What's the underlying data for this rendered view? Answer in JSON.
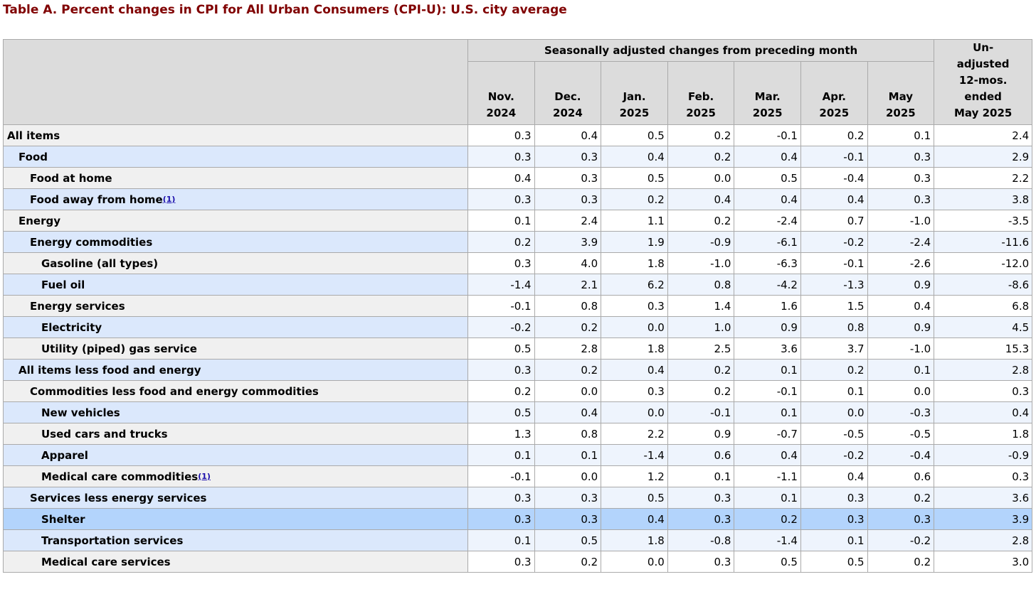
{
  "title": "Table A. Percent changes in CPI for All Urban Consumers (CPI-U): U.S. city average",
  "table": {
    "group_header": "Seasonally adjusted changes from preceding month",
    "columns": [
      "Nov.\n2024",
      "Dec.\n2024",
      "Jan.\n2025",
      "Feb.\n2025",
      "Mar.\n2025",
      "Apr.\n2025",
      "May\n2025",
      "Un-\nadjusted\n12-mos.\nended\nMay 2025"
    ],
    "rows": [
      {
        "label": "All items",
        "values": [
          "0.3",
          "0.4",
          "0.5",
          "0.2",
          "-0.1",
          "0.2",
          "0.1",
          "2.4"
        ]
      },
      {
        "label": "Food",
        "values": [
          "0.3",
          "0.3",
          "0.4",
          "0.2",
          "0.4",
          "-0.1",
          "0.3",
          "2.9"
        ]
      },
      {
        "label": "Food at home",
        "values": [
          "0.4",
          "0.3",
          "0.5",
          "0.0",
          "0.5",
          "-0.4",
          "0.3",
          "2.2"
        ]
      },
      {
        "label": "Food away from home",
        "note": "(1)",
        "values": [
          "0.3",
          "0.3",
          "0.2",
          "0.4",
          "0.4",
          "0.4",
          "0.3",
          "3.8"
        ]
      },
      {
        "label": "Energy",
        "values": [
          "0.1",
          "2.4",
          "1.1",
          "0.2",
          "-2.4",
          "0.7",
          "-1.0",
          "-3.5"
        ]
      },
      {
        "label": "Energy commodities",
        "values": [
          "0.2",
          "3.9",
          "1.9",
          "-0.9",
          "-6.1",
          "-0.2",
          "-2.4",
          "-11.6"
        ]
      },
      {
        "label": "Gasoline (all types)",
        "values": [
          "0.3",
          "4.0",
          "1.8",
          "-1.0",
          "-6.3",
          "-0.1",
          "-2.6",
          "-12.0"
        ]
      },
      {
        "label": "Fuel oil",
        "values": [
          "-1.4",
          "2.1",
          "6.2",
          "0.8",
          "-4.2",
          "-1.3",
          "0.9",
          "-8.6"
        ]
      },
      {
        "label": "Energy services",
        "values": [
          "-0.1",
          "0.8",
          "0.3",
          "1.4",
          "1.6",
          "1.5",
          "0.4",
          "6.8"
        ]
      },
      {
        "label": "Electricity",
        "values": [
          "-0.2",
          "0.2",
          "0.0",
          "1.0",
          "0.9",
          "0.8",
          "0.9",
          "4.5"
        ]
      },
      {
        "label": "Utility (piped) gas service",
        "values": [
          "0.5",
          "2.8",
          "1.8",
          "2.5",
          "3.6",
          "3.7",
          "-1.0",
          "15.3"
        ]
      },
      {
        "label": "All items less food and energy",
        "values": [
          "0.3",
          "0.2",
          "0.4",
          "0.2",
          "0.1",
          "0.2",
          "0.1",
          "2.8"
        ]
      },
      {
        "label": "Commodities less food and energy commodities",
        "values": [
          "0.2",
          "0.0",
          "0.3",
          "0.2",
          "-0.1",
          "0.1",
          "0.0",
          "0.3"
        ]
      },
      {
        "label": "New vehicles",
        "values": [
          "0.5",
          "0.4",
          "0.0",
          "-0.1",
          "0.1",
          "0.0",
          "-0.3",
          "0.4"
        ]
      },
      {
        "label": "Used cars and trucks",
        "values": [
          "1.3",
          "0.8",
          "2.2",
          "0.9",
          "-0.7",
          "-0.5",
          "-0.5",
          "1.8"
        ]
      },
      {
        "label": "Apparel",
        "values": [
          "0.1",
          "0.1",
          "-1.4",
          "0.6",
          "0.4",
          "-0.2",
          "-0.4",
          "-0.9"
        ]
      },
      {
        "label": "Medical care commodities",
        "note": "(1)",
        "values": [
          "-0.1",
          "0.0",
          "1.2",
          "0.1",
          "-1.1",
          "0.4",
          "0.6",
          "0.3"
        ]
      },
      {
        "label": "Services less energy services",
        "values": [
          "0.3",
          "0.3",
          "0.5",
          "0.3",
          "0.1",
          "0.3",
          "0.2",
          "3.6"
        ]
      },
      {
        "label": "Shelter",
        "values": [
          "0.3",
          "0.3",
          "0.4",
          "0.3",
          "0.2",
          "0.3",
          "0.3",
          "3.9"
        ]
      },
      {
        "label": "Transportation services",
        "values": [
          "0.1",
          "0.5",
          "1.8",
          "-0.8",
          "-1.4",
          "0.1",
          "-0.2",
          "2.8"
        ]
      },
      {
        "label": "Medical care services",
        "values": [
          "0.3",
          "0.2",
          "0.0",
          "0.3",
          "0.5",
          "0.5",
          "0.2",
          "3.0"
        ]
      }
    ]
  }
}
